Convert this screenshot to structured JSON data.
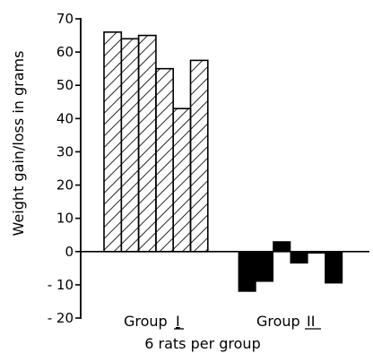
{
  "chart_data": {
    "type": "bar",
    "title": "",
    "ylabel": "Weight gain/loss in grams",
    "xlabel": "6 rats per group",
    "ylim": [
      -20,
      70
    ],
    "yticks": [
      "70",
      "60",
      "50",
      "40",
      "30",
      "20",
      "10",
      "0",
      "-10",
      "-20"
    ],
    "grid": false,
    "groups": [
      {
        "name": "Group I",
        "pattern": "hatched",
        "color": "#000000",
        "values": [
          66,
          64,
          65,
          55,
          43,
          57.5
        ]
      },
      {
        "name": "Group II",
        "pattern": "solid",
        "color": "#000000",
        "values": [
          -12,
          -9,
          3,
          -3.5,
          -0.5,
          -9.5
        ]
      }
    ],
    "group_labels": [
      {
        "text": "Group",
        "numeral": "I"
      },
      {
        "text": "Group",
        "numeral": "II"
      }
    ]
  }
}
